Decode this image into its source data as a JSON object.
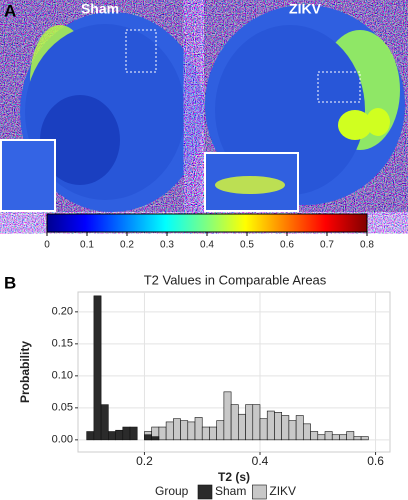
{
  "panel_a": {
    "label": "A",
    "images": [
      "Sham",
      "ZIKV"
    ],
    "colorbar": {
      "lim": [
        0,
        0.8
      ],
      "ticks": [
        0,
        0.1,
        0.2,
        0.3,
        0.4,
        0.5,
        0.6,
        0.7,
        0.8
      ]
    }
  },
  "panel_b": {
    "label": "B"
  },
  "chart_data": {
    "type": "histogram",
    "title": "T2 Values in Comparable Areas",
    "x_label": "T2 (s)",
    "y_label": "Probability",
    "legend_title": "Group",
    "bins": [
      0.1,
      0.1125,
      0.125,
      0.1375,
      0.15,
      0.1625,
      0.175,
      0.1875,
      0.2,
      0.2125,
      0.225,
      0.2375,
      0.25,
      0.2625,
      0.275,
      0.2875,
      0.3,
      0.3125,
      0.325,
      0.3375,
      0.35,
      0.3625,
      0.375,
      0.3875,
      0.4,
      0.4125,
      0.425,
      0.4375,
      0.45,
      0.4625,
      0.475,
      0.4875,
      0.5,
      0.5125,
      0.525,
      0.5375,
      0.55,
      0.5625,
      0.575,
      0.5875,
      0.6
    ],
    "series": [
      {
        "name": "ZIKV",
        "color": "#c8c8c8",
        "values": [
          0,
          0,
          0,
          0,
          0,
          0,
          0,
          0,
          0.013,
          0.02,
          0.02,
          0.028,
          0.033,
          0.03,
          0.028,
          0.035,
          0.02,
          0.02,
          0.03,
          0.075,
          0.055,
          0.04,
          0.055,
          0.055,
          0.033,
          0.045,
          0.043,
          0.038,
          0.03,
          0.038,
          0.025,
          0.013,
          0.008,
          0.013,
          0.008,
          0.008,
          0.013,
          0.005,
          0.005,
          0
        ]
      },
      {
        "name": "Sham",
        "color": "#2b2b2b",
        "values": [
          0.013,
          0.225,
          0.055,
          0.013,
          0.015,
          0.02,
          0.02,
          0,
          0.008,
          0.005,
          0,
          0,
          0,
          0,
          0,
          0,
          0,
          0,
          0,
          0,
          0,
          0,
          0,
          0,
          0,
          0,
          0,
          0,
          0,
          0,
          0,
          0,
          0,
          0,
          0,
          0,
          0,
          0,
          0,
          0
        ]
      }
    ],
    "xlim": [
      0.085,
      0.625
    ],
    "xticks": [
      0.2,
      0.4,
      0.6
    ],
    "ylim": [
      -0.019,
      0.231
    ],
    "yticks": [
      {
        "value": 0,
        "label": "0.00"
      },
      {
        "value": 0.05,
        "label": "0.05"
      },
      {
        "value": 0.1,
        "label": "0.10"
      },
      {
        "value": 0.15,
        "label": "0.15"
      },
      {
        "value": 0.2,
        "label": "0.20"
      }
    ],
    "grid": true
  }
}
